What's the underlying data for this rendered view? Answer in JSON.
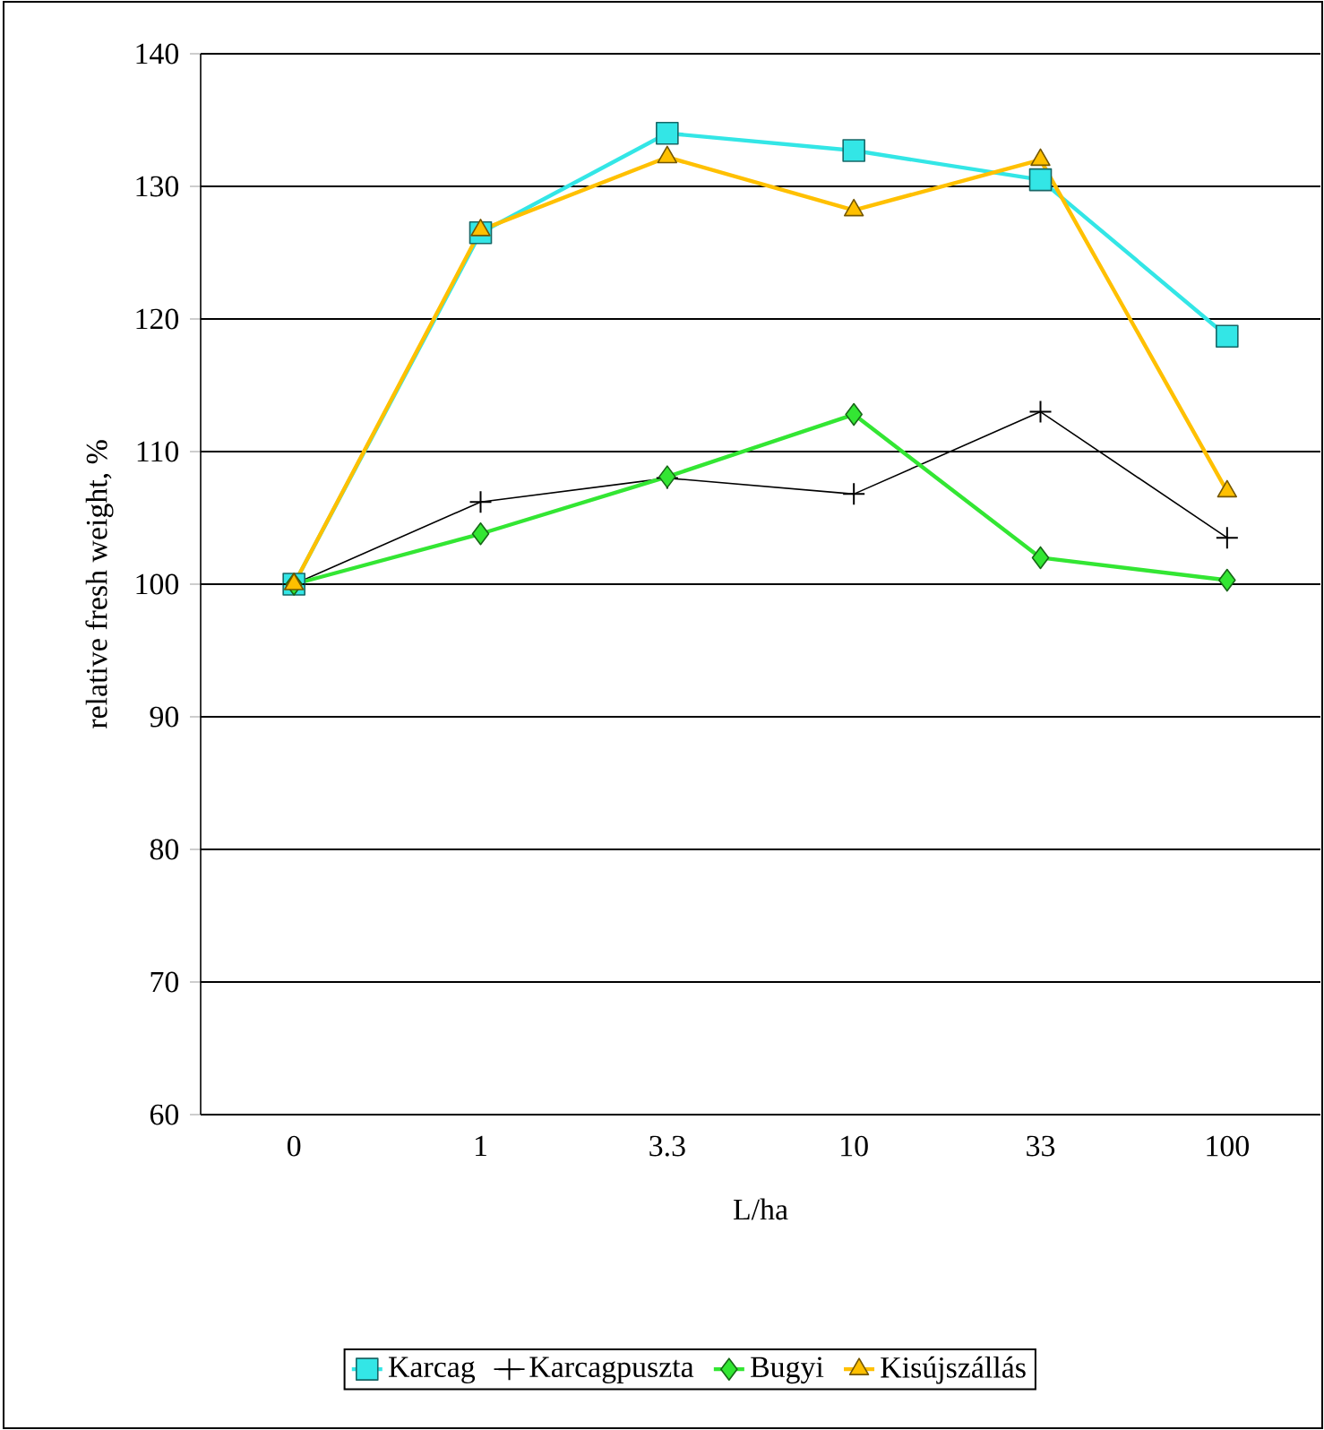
{
  "chart_data": {
    "type": "line",
    "xlabel": "L/ha",
    "ylabel": "relative fresh weight, %",
    "categories": [
      "0",
      "1",
      "3.3",
      "10",
      "33",
      "100"
    ],
    "series": [
      {
        "name": "Karcag",
        "color": "#33e6e6",
        "marker": "square",
        "values": [
          100,
          126.5,
          134,
          132.7,
          130.5,
          118.7
        ]
      },
      {
        "name": "Karcagpuszta",
        "color": "#000000",
        "marker": "cross",
        "values": [
          100,
          106.2,
          108,
          106.8,
          113,
          103.5
        ]
      },
      {
        "name": "Bugyi",
        "color": "#33e633",
        "marker": "diamond",
        "values": [
          100,
          103.8,
          108.1,
          112.8,
          102,
          100.3
        ]
      },
      {
        "name": "Kisújszállás",
        "color": "#ffc000",
        "marker": "triangle",
        "values": [
          100,
          126.7,
          132.2,
          128.2,
          132,
          107
        ]
      }
    ],
    "ylim": [
      60,
      140
    ],
    "yticks": [
      60,
      70,
      80,
      90,
      100,
      110,
      120,
      130,
      140
    ],
    "grid": "y",
    "legend": "bottom",
    "line_style": "solid"
  }
}
